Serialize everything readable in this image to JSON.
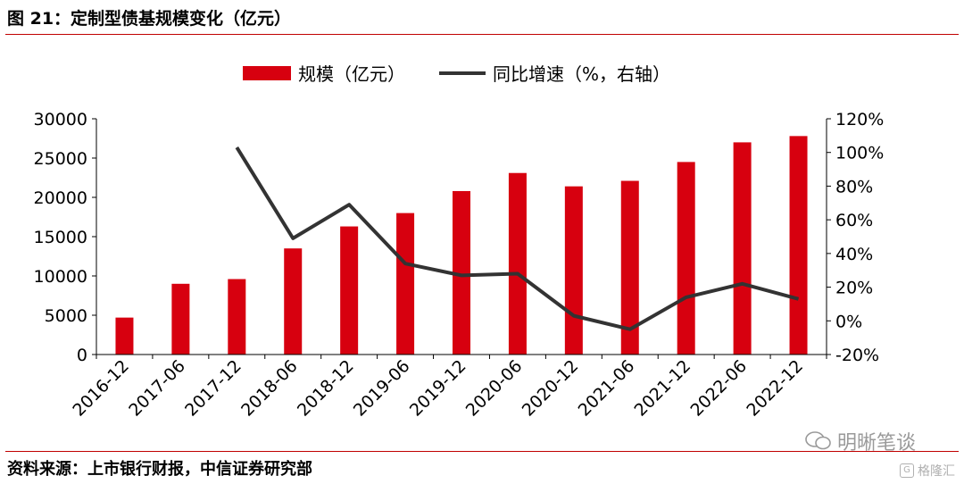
{
  "page": {
    "title": "图 21：定制型债基规模变化（亿元）",
    "source": "资料来源：上市银行财报，中信证券研究部",
    "watermark": "明晰笔谈",
    "watermark2": "格隆汇"
  },
  "chart_data": {
    "type": "bar+line",
    "categories": [
      "2016-12",
      "2017-06",
      "2017-12",
      "2018-06",
      "2018-12",
      "2019-06",
      "2019-12",
      "2020-06",
      "2020-12",
      "2021-06",
      "2021-12",
      "2022-06",
      "2022-12"
    ],
    "series": [
      {
        "name": "规模（亿元）",
        "type": "bar",
        "axis": "left",
        "color": "#d7000f",
        "values": [
          4700,
          9000,
          9600,
          13500,
          16300,
          18000,
          20800,
          23100,
          21400,
          22100,
          24500,
          27000,
          27800
        ]
      },
      {
        "name": "同比增速（%，右轴）",
        "type": "line",
        "axis": "right",
        "color": "#333333",
        "values": [
          null,
          null,
          103,
          49,
          69,
          34,
          27,
          28,
          3,
          -5,
          14,
          22,
          13
        ]
      }
    ],
    "left_axis": {
      "min": 0,
      "max": 30000,
      "ticks": [
        "0",
        "5000",
        "10000",
        "15000",
        "20000",
        "25000",
        "30000"
      ]
    },
    "right_axis": {
      "min": -20,
      "max": 120,
      "ticks": [
        "-20%",
        "0%",
        "20%",
        "40%",
        "60%",
        "80%",
        "100%",
        "120%"
      ]
    },
    "legend_position": "top-center",
    "grid": false
  }
}
